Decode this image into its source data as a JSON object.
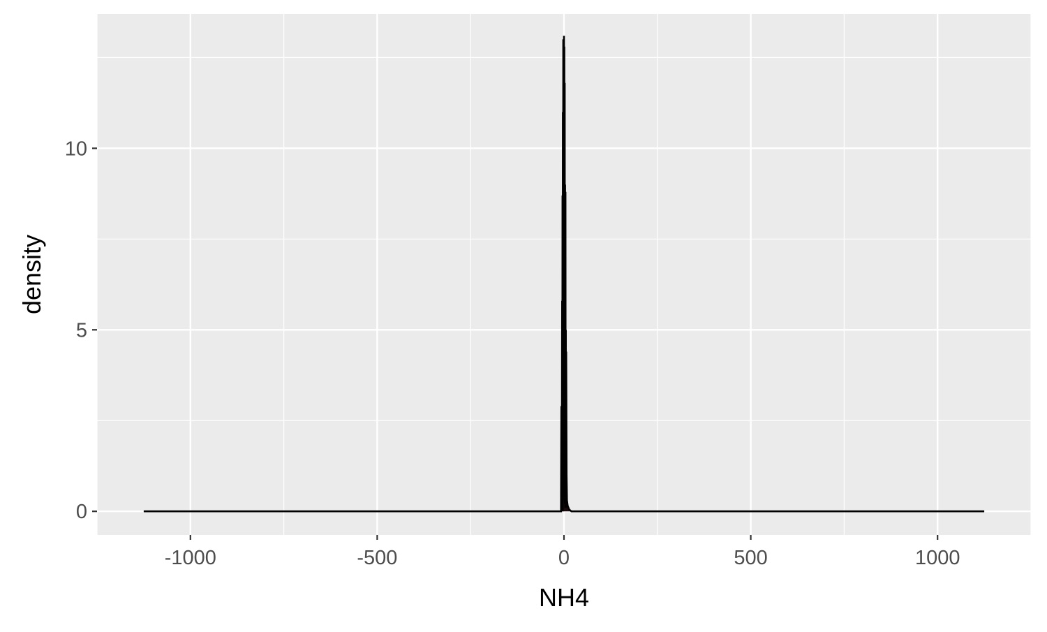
{
  "chart_data": {
    "type": "area",
    "title": "",
    "xlabel": "NH4",
    "ylabel": "density",
    "xlim": [
      -1250,
      1250
    ],
    "ylim": [
      -0.65,
      13.7
    ],
    "x_ticks": [
      -1000,
      -500,
      0,
      500,
      1000
    ],
    "x_tick_labels": [
      "-1000",
      "-500",
      "0",
      "500",
      "1000"
    ],
    "y_ticks": [
      0,
      5,
      10
    ],
    "y_tick_labels": [
      "0",
      "5",
      "10"
    ],
    "grid": true,
    "legend": "none",
    "colors": {
      "panel": "#EBEBEB",
      "grid": "#FFFFFF",
      "line": "#000000",
      "fill": "#1A0C0C",
      "tick_text": "#4D4D4D",
      "label_text": "#000000"
    },
    "series": [
      {
        "x": [
          -1125,
          -15,
          -8,
          -7,
          -6,
          -5,
          -4.5,
          -4,
          -3.5,
          -3,
          -2.5,
          -2,
          -1.5,
          -1,
          -0.5,
          0,
          0.5,
          1,
          1.5,
          2,
          2.5,
          3,
          3.5,
          4,
          4.5,
          5,
          5.5,
          6,
          7,
          8,
          10,
          14,
          20,
          1125
        ],
        "y": [
          0,
          0,
          0,
          2.9,
          0,
          5.8,
          0,
          8.7,
          0,
          11.0,
          1.0,
          13.0,
          0.8,
          12.5,
          0.5,
          13.1,
          0.6,
          12.8,
          0.3,
          11.8,
          0.2,
          9.0,
          0.1,
          8.8,
          0.1,
          5.0,
          0.1,
          4.4,
          1.0,
          0.3,
          0.15,
          0.05,
          0,
          0
        ]
      }
    ]
  }
}
